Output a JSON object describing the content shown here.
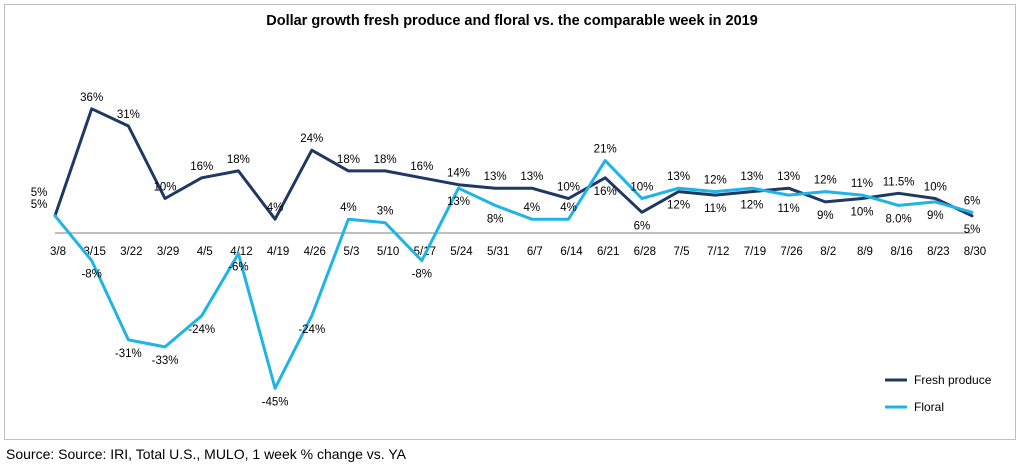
{
  "title": "Dollar growth fresh produce and floral vs. the comparable week in 2019",
  "source": "Source: Source: IRI, Total U.S., MULO, 1 week % change vs. YA",
  "colors": {
    "fresh": "#1f3864",
    "floral": "#1fb3e6",
    "axis": "#7f7f7f",
    "frame": "#bfbfbf"
  },
  "chart_data": {
    "type": "line",
    "title": "Dollar growth fresh produce and floral vs. the comparable week in 2019",
    "categories": [
      "3/8",
      "3/15",
      "3/22",
      "3/29",
      "4/5",
      "4/12",
      "4/19",
      "4/26",
      "5/3",
      "5/10",
      "5/17",
      "5/24",
      "5/31",
      "6/7",
      "6/14",
      "6/21",
      "6/28",
      "7/5",
      "7/12",
      "7/19",
      "7/26",
      "8/2",
      "8/9",
      "8/16",
      "8/23",
      "8/30"
    ],
    "ylim": [
      -50,
      40
    ],
    "grid": false,
    "legend_position": "bottom-right",
    "series": [
      {
        "name": "Fresh produce",
        "values": [
          5,
          36,
          31,
          10,
          16,
          18,
          4,
          24,
          18,
          18,
          16,
          14,
          13,
          13,
          10,
          16,
          6,
          12,
          11,
          12,
          13,
          9,
          10,
          11.5,
          10,
          5
        ],
        "labels": [
          "5%",
          "36%",
          "31%",
          "10%",
          "16%",
          "18%",
          "4%",
          "24%",
          "18%",
          "18%",
          "16%",
          "14%",
          "13%",
          "13%",
          "10%",
          "16%",
          "6%",
          "12%",
          "11%",
          "12%",
          "13%",
          "9%",
          "10%",
          "11.5%",
          "10%",
          "5%"
        ]
      },
      {
        "name": "Floral",
        "values": [
          5,
          -8,
          -31,
          -33,
          -24,
          -6,
          -45,
          -24,
          4,
          3,
          -8,
          13,
          8,
          4,
          4,
          21,
          10,
          13,
          12,
          13,
          11,
          12,
          11,
          8.0,
          9,
          6
        ],
        "labels": [
          "5%",
          "-8%",
          "-31%",
          "-33%",
          "-24%",
          "-6%",
          "-45%",
          "-24%",
          "4%",
          "3%",
          "-8%",
          "13%",
          "8%",
          "4%",
          "4%",
          "21%",
          "10%",
          "13%",
          "12%",
          "13%",
          "11%",
          "12%",
          "11%",
          "8.0%",
          "9%",
          "6%"
        ]
      }
    ]
  }
}
